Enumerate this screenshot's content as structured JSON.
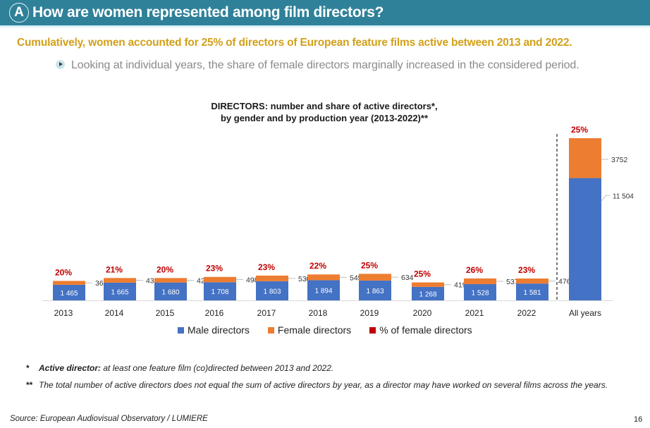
{
  "header": {
    "badge": "A",
    "title": "How are women represented among film directors?"
  },
  "headline": "Cumulatively, women accounted for 25% of directors of European feature films active between 2013 and 2022.",
  "bullet": {
    "icon": "play-bullet-icon",
    "text": "Looking at individual years, the share of female directors marginally increased in the considered period."
  },
  "chart_title": {
    "line1": "DIRECTORS: number and share of active directors*,",
    "line2": "by gender and by production year (2013-2022)**"
  },
  "chart_data": {
    "type": "bar",
    "stacked": true,
    "title": "DIRECTORS: number and share of active directors*, by gender and by production year (2013-2022)**",
    "categories": [
      "2013",
      "2014",
      "2015",
      "2016",
      "2017",
      "2018",
      "2019",
      "2020",
      "2021",
      "2022",
      "All years"
    ],
    "series": [
      {
        "name": "Male directors",
        "color": "#4472c4",
        "values": [
          1465,
          1665,
          1680,
          1708,
          1803,
          1894,
          1863,
          1268,
          1528,
          1581,
          11504
        ],
        "labels": [
          "1 465",
          "1 665",
          "1 680",
          "1 708",
          "1 803",
          "1 894",
          "1 863",
          "1 268",
          "1 528",
          "1 581",
          "11 504"
        ]
      },
      {
        "name": "Female directors",
        "color": "#ed7d31",
        "values": [
          366,
          439,
          420,
          498,
          530,
          545,
          634,
          419,
          537,
          476,
          3752
        ],
        "labels": [
          "366",
          "439",
          "420",
          "498",
          "530",
          "545",
          "634",
          "419",
          "537",
          "476",
          "3752"
        ]
      },
      {
        "name": "% of female directors",
        "color": "#c00000",
        "values": [
          20,
          21,
          20,
          23,
          23,
          22,
          25,
          25,
          26,
          23,
          25
        ],
        "labels": [
          "20%",
          "21%",
          "20%",
          "23%",
          "23%",
          "22%",
          "25%",
          "25%",
          "26%",
          "23%",
          "25%"
        ]
      }
    ],
    "xlabel": "",
    "ylabel": "",
    "ylim": [
      0,
      15256
    ],
    "grid": false,
    "separator_before": "All years",
    "legend_position": "bottom"
  },
  "notes": [
    {
      "mark": "*",
      "bold": "Active director:",
      "text": " at least one feature film (co)directed between 2013 and 2022."
    },
    {
      "mark": "**",
      "bold": "",
      "text": "The total number of active directors does not equal the sum of active directors by year, as a director may have worked on several films across the years."
    }
  ],
  "source": "Source: European Audiovisual Observatory / LUMIERE",
  "page_number": "16"
}
